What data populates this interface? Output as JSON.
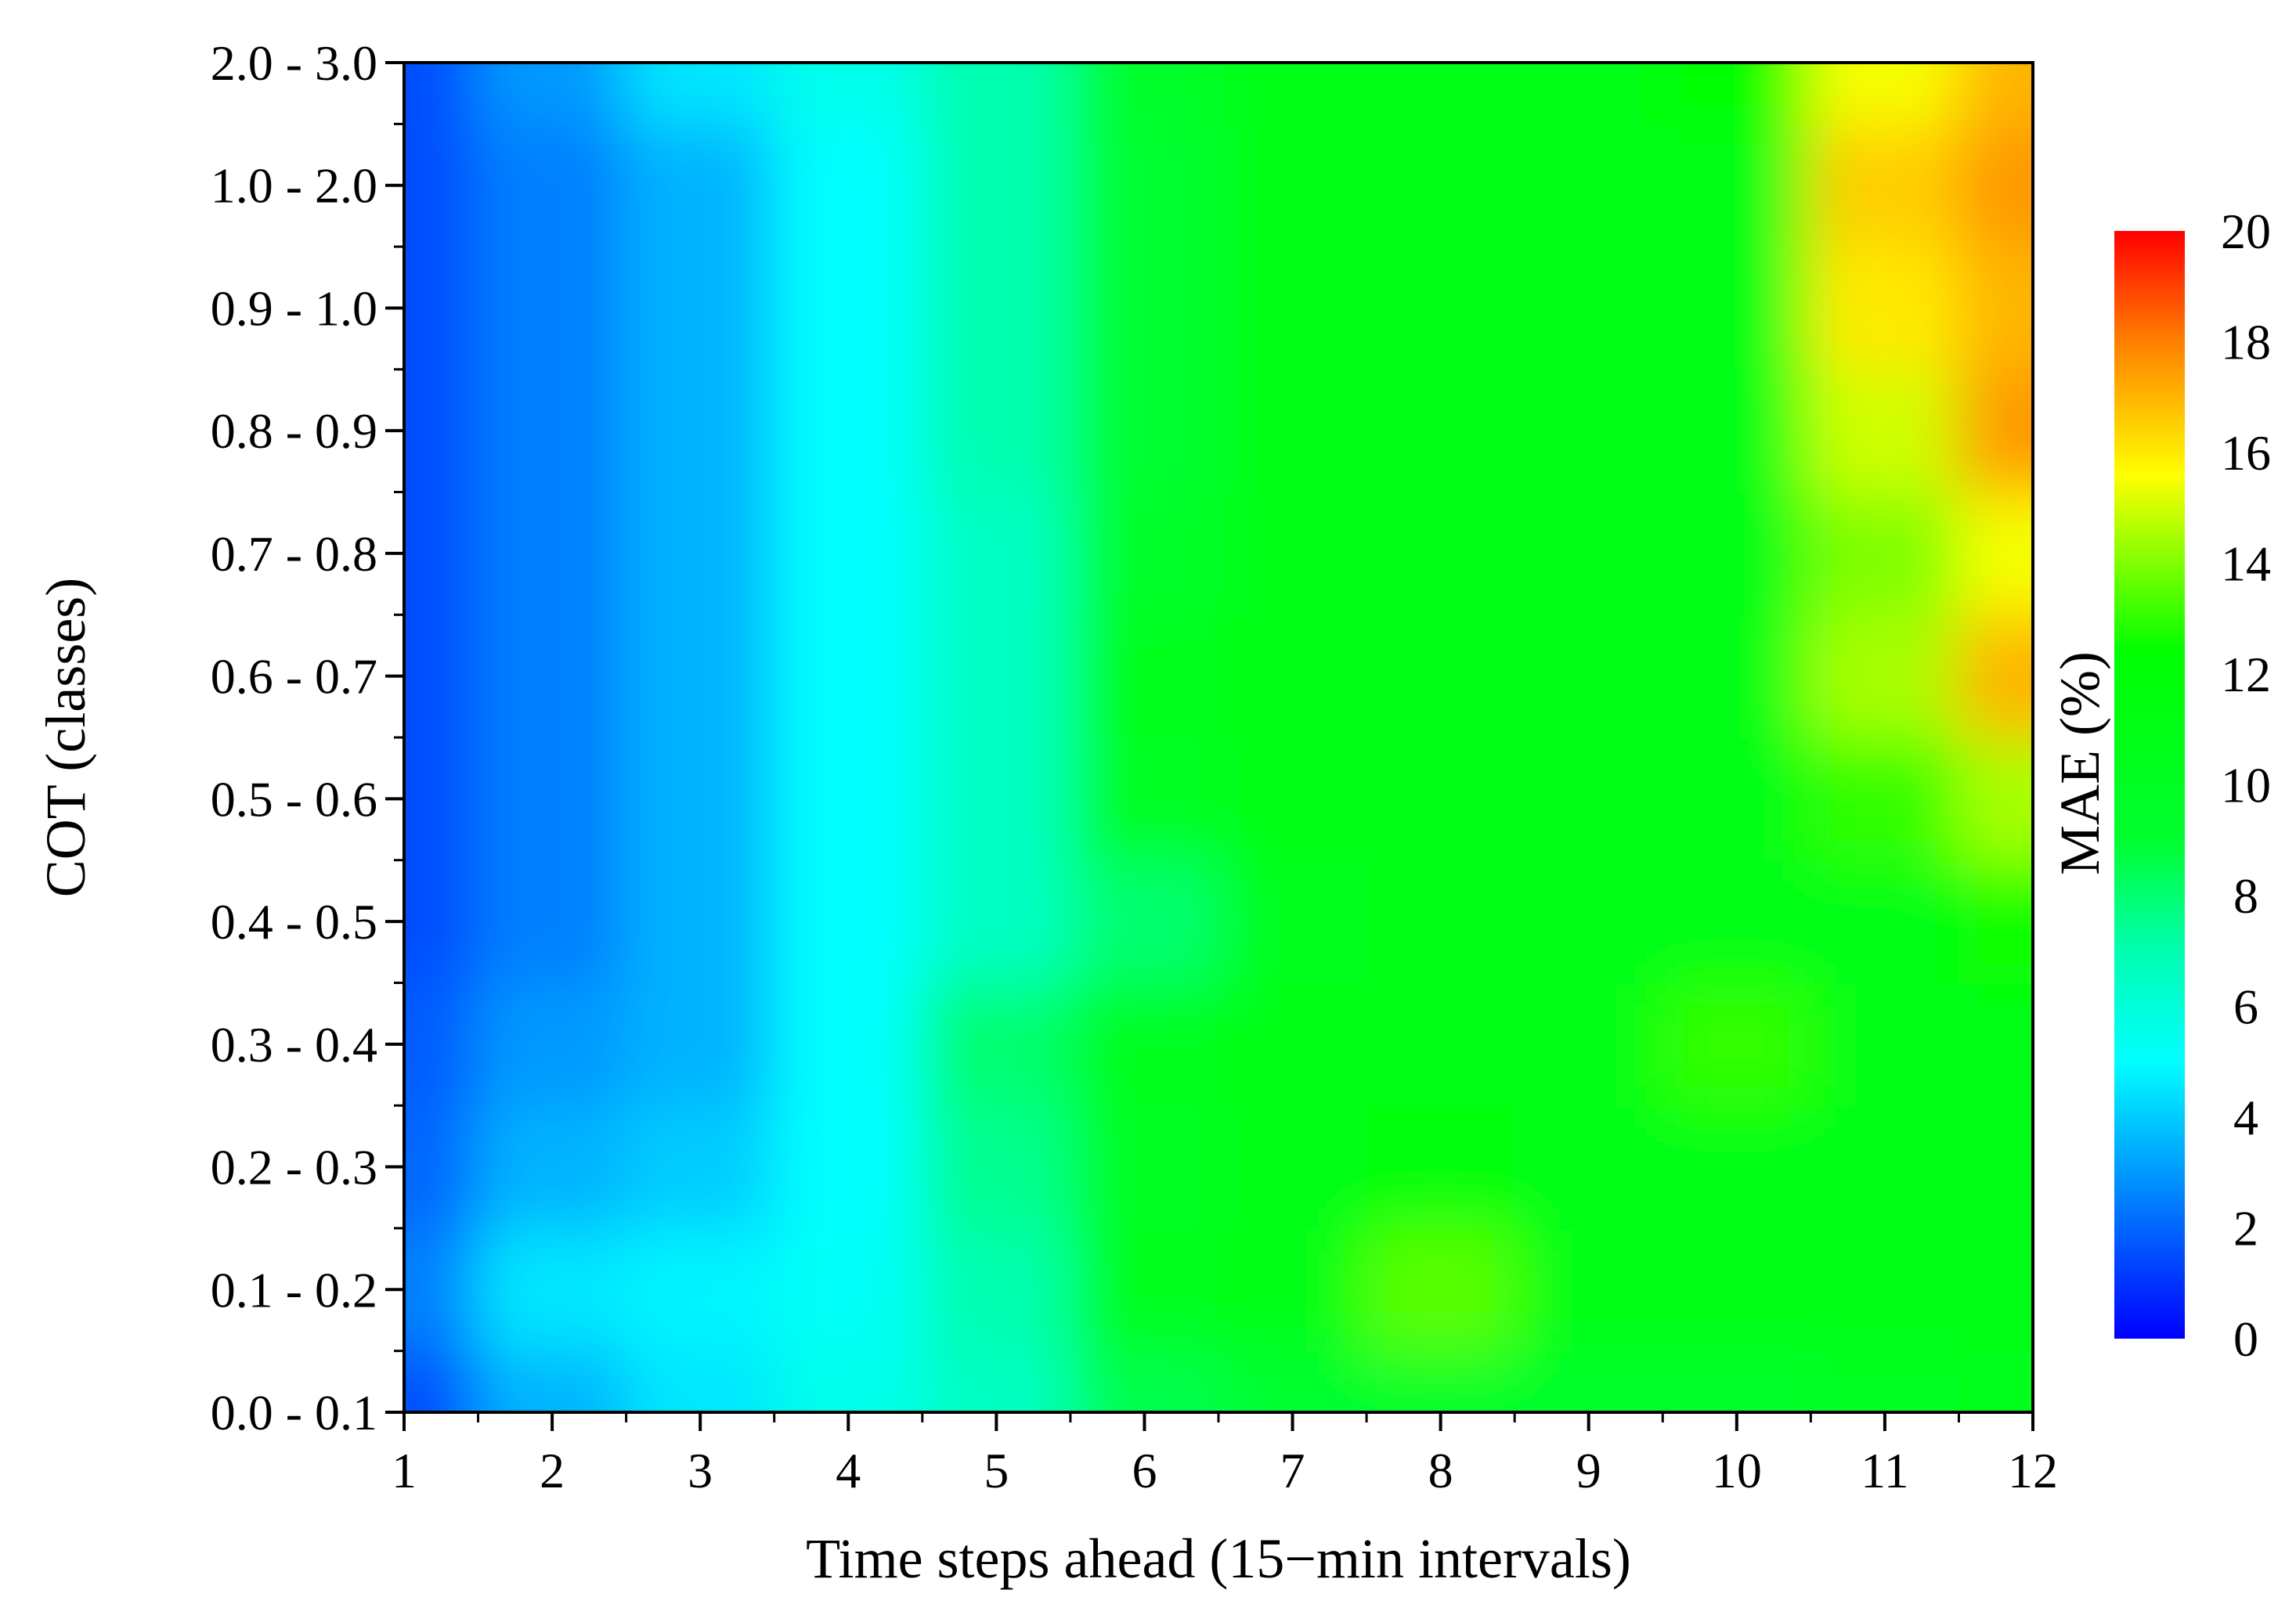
{
  "chart_data": {
    "type": "heatmap",
    "title": "",
    "xlabel": "Time steps ahead (15−min intervals)",
    "ylabel": "COT (classes)",
    "x": [
      1,
      2,
      3,
      4,
      5,
      6,
      7,
      8,
      9,
      10,
      11,
      12
    ],
    "y_categories": [
      "0.0 - 0.1",
      "0.1 - 0.2",
      "0.2 - 0.3",
      "0.3 - 0.4",
      "0.4 - 0.5",
      "0.5 - 0.6",
      "0.6 - 0.7",
      "0.7 - 0.8",
      "0.8 - 0.9",
      "0.9 - 1.0",
      "1.0 - 2.0",
      "2.0 - 3.0"
    ],
    "values": [
      [
        1.5,
        3.5,
        4.5,
        5.5,
        6.5,
        8.5,
        9.0,
        9.5,
        9.5,
        9.5,
        10.0,
        10.5
      ],
      [
        2.5,
        4.5,
        4.8,
        5.2,
        7.0,
        10.5,
        11.0,
        13.5,
        11.0,
        11.0,
        11.0,
        11.0
      ],
      [
        2.0,
        3.5,
        4.0,
        5.0,
        7.5,
        10.0,
        11.0,
        11.5,
        11.0,
        11.0,
        11.0,
        11.0
      ],
      [
        1.8,
        3.0,
        3.5,
        5.0,
        8.0,
        10.5,
        11.0,
        11.0,
        11.0,
        13.0,
        11.0,
        11.0
      ],
      [
        1.5,
        2.5,
        3.5,
        5.0,
        6.5,
        8.0,
        10.5,
        11.0,
        11.0,
        11.0,
        11.0,
        12.5
      ],
      [
        1.5,
        2.5,
        3.5,
        5.0,
        6.5,
        10.0,
        11.0,
        11.0,
        11.0,
        11.0,
        13.0,
        14.5
      ],
      [
        1.5,
        2.5,
        3.5,
        5.0,
        6.5,
        10.5,
        11.0,
        11.0,
        11.0,
        11.0,
        14.5,
        17.0
      ],
      [
        1.5,
        2.5,
        3.5,
        5.0,
        6.5,
        9.5,
        11.0,
        11.0,
        11.0,
        11.0,
        14.0,
        15.5
      ],
      [
        1.5,
        2.5,
        3.5,
        5.0,
        7.0,
        9.0,
        11.0,
        11.0,
        11.0,
        11.0,
        15.0,
        17.5
      ],
      [
        1.5,
        2.5,
        3.5,
        5.0,
        7.0,
        9.0,
        11.0,
        11.0,
        11.0,
        11.0,
        16.0,
        17.0
      ],
      [
        1.5,
        2.5,
        3.5,
        5.0,
        7.0,
        9.0,
        11.0,
        11.0,
        11.0,
        11.0,
        16.5,
        17.5
      ],
      [
        1.5,
        3.0,
        4.5,
        5.5,
        7.0,
        9.5,
        11.0,
        11.0,
        11.0,
        12.0,
        15.5,
        17.0
      ]
    ],
    "colorbar": {
      "label": "MAE (%)",
      "range": [
        0,
        20
      ],
      "ticks": [
        "0",
        "2",
        "4",
        "6",
        "8",
        "10",
        "12",
        "14",
        "16",
        "18",
        "20"
      ],
      "colors": [
        "#0000ff",
        "#00ffff",
        "#00ff00",
        "#ffff00",
        "#ff0000"
      ]
    },
    "grid": false,
    "legend": "right"
  }
}
